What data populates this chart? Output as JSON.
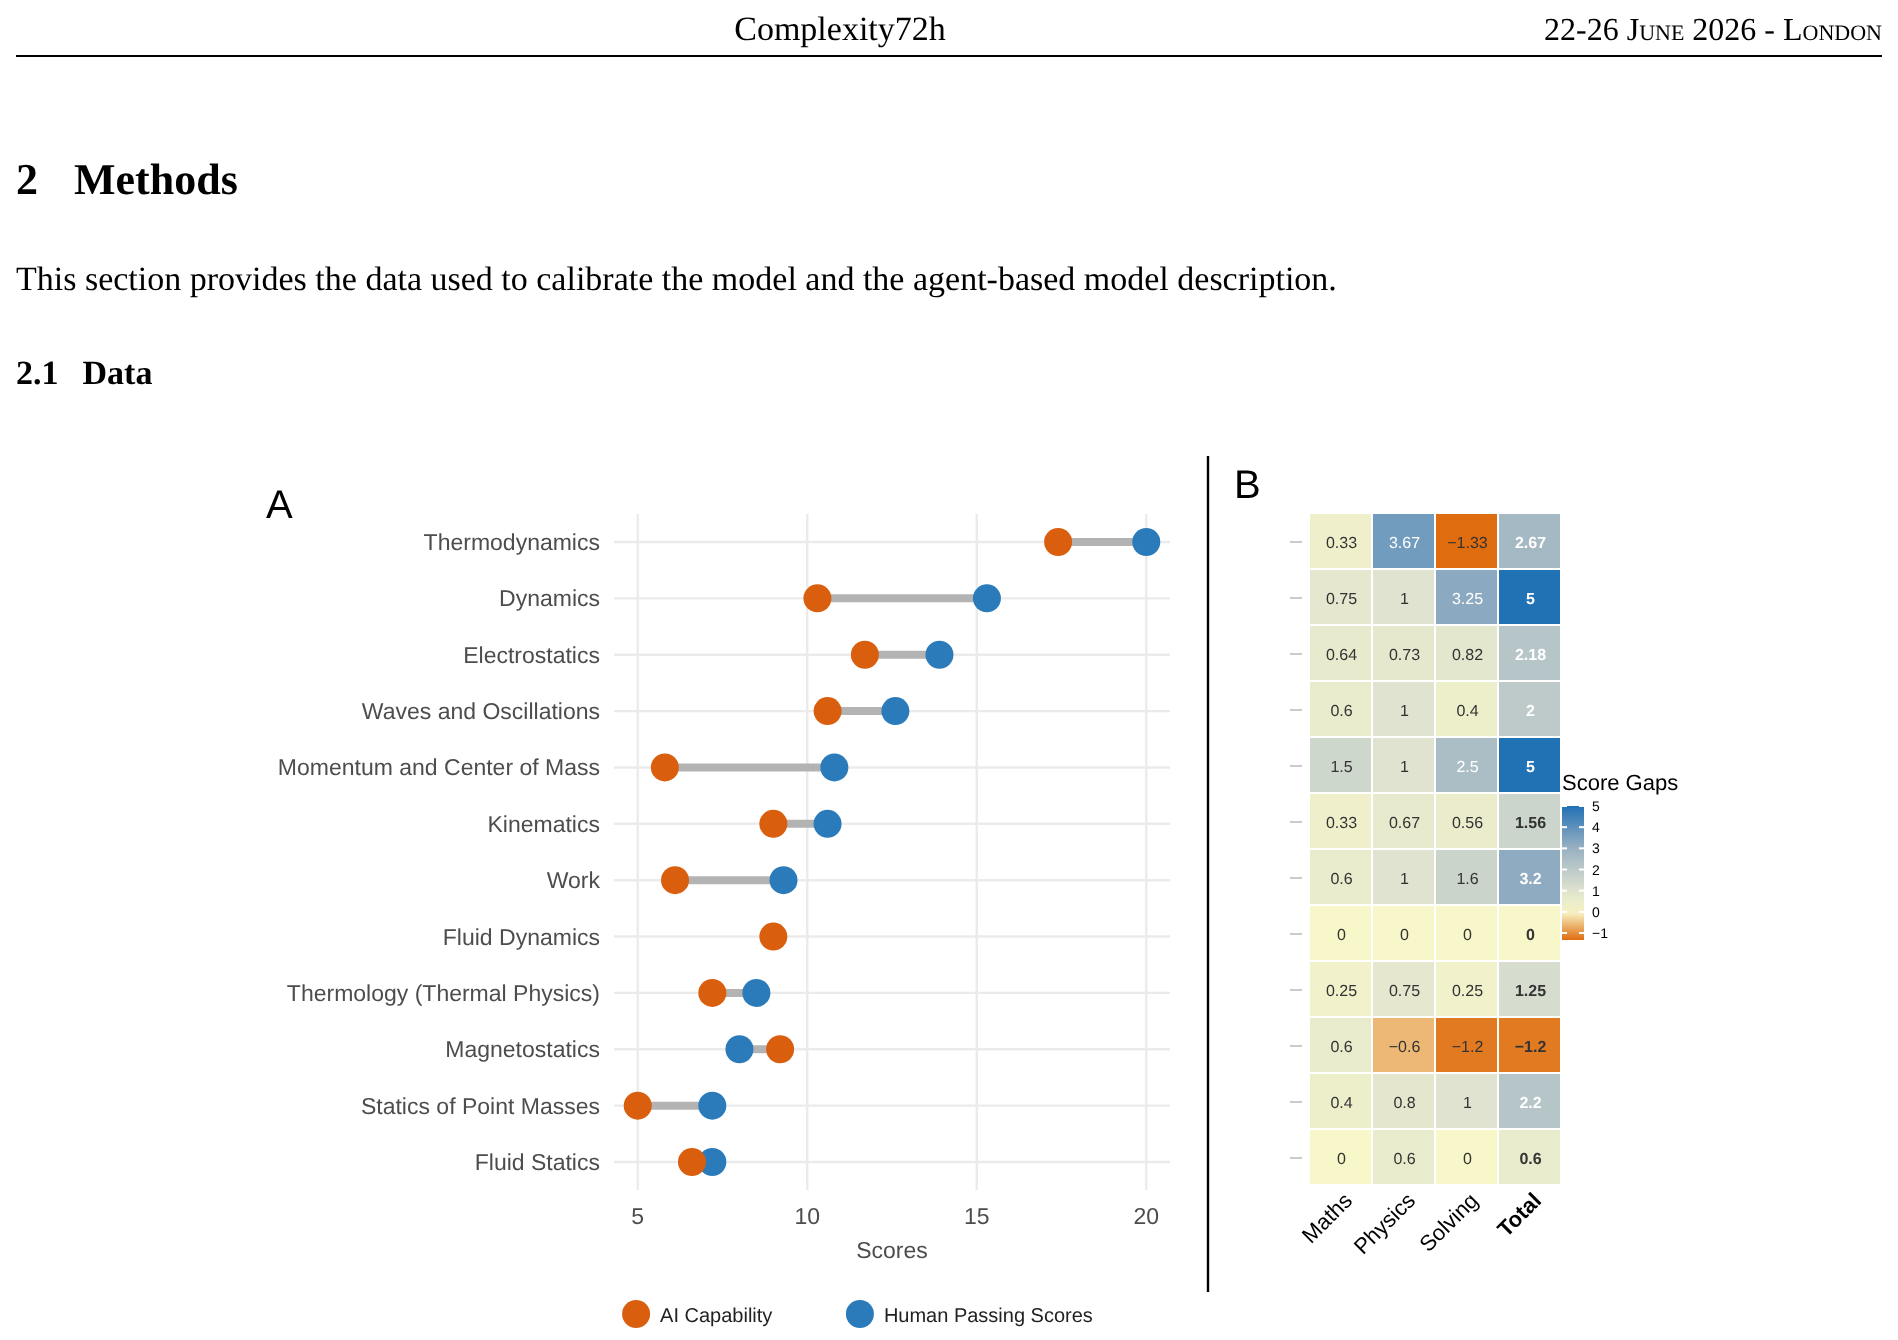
{
  "chart_data": [
    {
      "type": "scatter",
      "orientation": "horizontal",
      "annotations": [
        "Complexity72h",
        "22-26 June 2026 - London",
        "2 Methods",
        "This section provides the data used to calibrate the model and the agent-based model description.",
        "2.1 Data",
        "A"
      ],
      "categories": [
        "Thermodynamics",
        "Dynamics",
        "Electrostatics",
        "Waves and Oscillations",
        "Momentum and Center of Mass",
        "Kinematics",
        "Work",
        "Fluid Dynamics",
        "Thermology (Thermal Physics)",
        "Magnetostatics",
        "Statics of Point Masses",
        "Fluid Statics"
      ],
      "series": [
        {
          "name": "AI Capability",
          "color": "#d95f0e",
          "values": [
            17.4,
            10.3,
            11.7,
            10.6,
            5.8,
            9.0,
            6.1,
            9.0,
            7.2,
            9.2,
            5.0,
            6.6
          ]
        },
        {
          "name": "Human Passing Scores",
          "color": "#2b7bba",
          "values": [
            20.0,
            15.3,
            13.9,
            12.6,
            10.8,
            10.6,
            9.3,
            null,
            8.5,
            8.0,
            7.2,
            7.2
          ]
        }
      ],
      "xlim": [
        4.3,
        20.7
      ],
      "xticks": [
        5,
        10,
        15,
        20
      ],
      "xlabel": "Scores",
      "grid": true,
      "legend": "bottom",
      "marker": "circle"
    },
    {
      "type": "heatmap",
      "annotations": [
        "B"
      ],
      "categories": [
        "Maths",
        "Physics",
        "Solving",
        "Total"
      ],
      "y_categories": [
        null,
        null,
        null,
        null,
        null,
        null,
        null,
        null,
        null,
        null,
        null,
        null
      ],
      "cells": [
        [
          0.33,
          3.67,
          -1.33,
          2.67
        ],
        [
          0.75,
          1,
          3.25,
          5
        ],
        [
          0.64,
          0.73,
          0.82,
          2.18
        ],
        [
          0.6,
          1,
          0.4,
          2
        ],
        [
          1.5,
          1,
          2.5,
          5
        ],
        [
          0.33,
          0.67,
          0.56,
          1.56
        ],
        [
          0.6,
          1,
          1.6,
          3.2
        ],
        [
          0,
          0,
          0,
          0
        ],
        [
          0.25,
          0.75,
          0.25,
          1.25
        ],
        [
          0.6,
          -0.6,
          -1.2,
          -1.2
        ],
        [
          0.4,
          0.8,
          1,
          2.2
        ],
        [
          0,
          0.6,
          0,
          0.6
        ]
      ],
      "cell_labels": [
        [
          "0.33",
          "3.67",
          "−1.33",
          "2.67"
        ],
        [
          "0.75",
          "1",
          "3.25",
          "5"
        ],
        [
          "0.64",
          "0.73",
          "0.82",
          "2.18"
        ],
        [
          "0.6",
          "1",
          "0.4",
          "2"
        ],
        [
          "1.5",
          "1",
          "2.5",
          "5"
        ],
        [
          "0.33",
          "0.67",
          "0.56",
          "1.56"
        ],
        [
          "0.6",
          "1",
          "1.6",
          "3.2"
        ],
        [
          "0",
          "0",
          "0",
          "0"
        ],
        [
          "0.25",
          "0.75",
          "0.25",
          "1.25"
        ],
        [
          "0.6",
          "−0.6",
          "−1.2",
          "−1.2"
        ],
        [
          "0.4",
          "0.8",
          "1",
          "2.2"
        ],
        [
          "0",
          "0.6",
          "0",
          "0.6"
        ]
      ],
      "clabel": "Score Gaps",
      "clim": [
        -1.33,
        5
      ],
      "cticks": [
        {
          "value": -1,
          "label": "−1"
        },
        0,
        1,
        2,
        3,
        4,
        5
      ]
    }
  ]
}
